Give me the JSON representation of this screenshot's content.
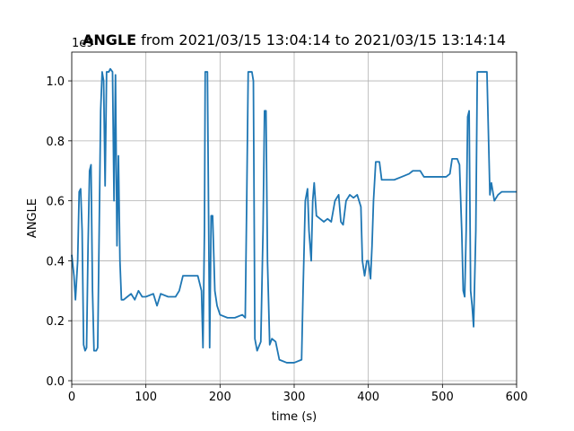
{
  "chart_data": {
    "type": "line",
    "title": {
      "bold": "ANGLE",
      "rest": "from 2021/03/15 13:04:14 to 2021/03/15 13:14:14"
    },
    "x_label": "time (s)",
    "y_label": "ANGLE",
    "offset_text": "1e9",
    "xlim": [
      0,
      600
    ],
    "xticks": [
      0,
      100,
      200,
      300,
      400,
      500,
      600
    ],
    "ylim": [
      -0.012,
      1.096
    ],
    "yticks": [
      {
        "value": 0,
        "label": "0.0"
      },
      0.2,
      0.4,
      0.6,
      0.8,
      {
        "value": 1,
        "label": "1.0"
      }
    ],
    "grid": true,
    "x": [
      0,
      3,
      5,
      8,
      10,
      12,
      14,
      16,
      18,
      20,
      22,
      24,
      26,
      28,
      30,
      33,
      35,
      37,
      39,
      41,
      43,
      45,
      47,
      50,
      52,
      55,
      57,
      59,
      61,
      63,
      65,
      67,
      70,
      75,
      80,
      85,
      90,
      95,
      100,
      110,
      115,
      120,
      130,
      140,
      145,
      150,
      160,
      170,
      175,
      177,
      179,
      180,
      183,
      186,
      188,
      190,
      193,
      196,
      200,
      210,
      220,
      230,
      234,
      236,
      238,
      243,
      245,
      247,
      250,
      255,
      258,
      260,
      262,
      264,
      267,
      270,
      275,
      280,
      290,
      300,
      310,
      312,
      315,
      318,
      320,
      323,
      325,
      327,
      330,
      335,
      340,
      345,
      350,
      355,
      360,
      363,
      366,
      370,
      375,
      380,
      385,
      390,
      392,
      395,
      398,
      400,
      403,
      405,
      407,
      410,
      415,
      418,
      425,
      435,
      445,
      455,
      460,
      470,
      475,
      485,
      495,
      505,
      510,
      513,
      520,
      523,
      526,
      528,
      530,
      532,
      534,
      536,
      538,
      540,
      542,
      545,
      547,
      555,
      560,
      564,
      566,
      570,
      575,
      580,
      590,
      600
    ],
    "series": [
      {
        "name": "ANGLE",
        "color": "#1f77b4",
        "values": [
          0.42,
          0.35,
          0.27,
          0.4,
          0.63,
          0.64,
          0.5,
          0.12,
          0.1,
          0.11,
          0.45,
          0.7,
          0.72,
          0.3,
          0.1,
          0.1,
          0.11,
          0.5,
          0.9,
          1.03,
          1.0,
          0.65,
          1.03,
          1.03,
          1.04,
          1.03,
          0.6,
          1.02,
          0.45,
          0.75,
          0.4,
          0.27,
          0.27,
          0.28,
          0.29,
          0.27,
          0.3,
          0.28,
          0.28,
          0.29,
          0.25,
          0.29,
          0.28,
          0.28,
          0.3,
          0.35,
          0.35,
          0.35,
          0.3,
          0.11,
          0.5,
          1.03,
          1.03,
          0.11,
          0.55,
          0.55,
          0.3,
          0.25,
          0.22,
          0.21,
          0.21,
          0.22,
          0.21,
          0.6,
          1.03,
          1.03,
          1.0,
          0.14,
          0.1,
          0.13,
          0.5,
          0.9,
          0.9,
          0.4,
          0.12,
          0.14,
          0.13,
          0.07,
          0.06,
          0.06,
          0.07,
          0.3,
          0.6,
          0.64,
          0.5,
          0.4,
          0.6,
          0.66,
          0.55,
          0.54,
          0.53,
          0.54,
          0.53,
          0.6,
          0.62,
          0.53,
          0.52,
          0.6,
          0.62,
          0.61,
          0.62,
          0.58,
          0.4,
          0.35,
          0.4,
          0.4,
          0.34,
          0.45,
          0.6,
          0.73,
          0.73,
          0.67,
          0.67,
          0.67,
          0.68,
          0.69,
          0.7,
          0.7,
          0.68,
          0.68,
          0.68,
          0.68,
          0.69,
          0.74,
          0.74,
          0.72,
          0.5,
          0.3,
          0.28,
          0.5,
          0.88,
          0.9,
          0.3,
          0.25,
          0.18,
          0.5,
          1.03,
          1.03,
          1.03,
          0.62,
          0.66,
          0.6,
          0.62,
          0.63,
          0.63,
          0.63
        ]
      }
    ]
  }
}
